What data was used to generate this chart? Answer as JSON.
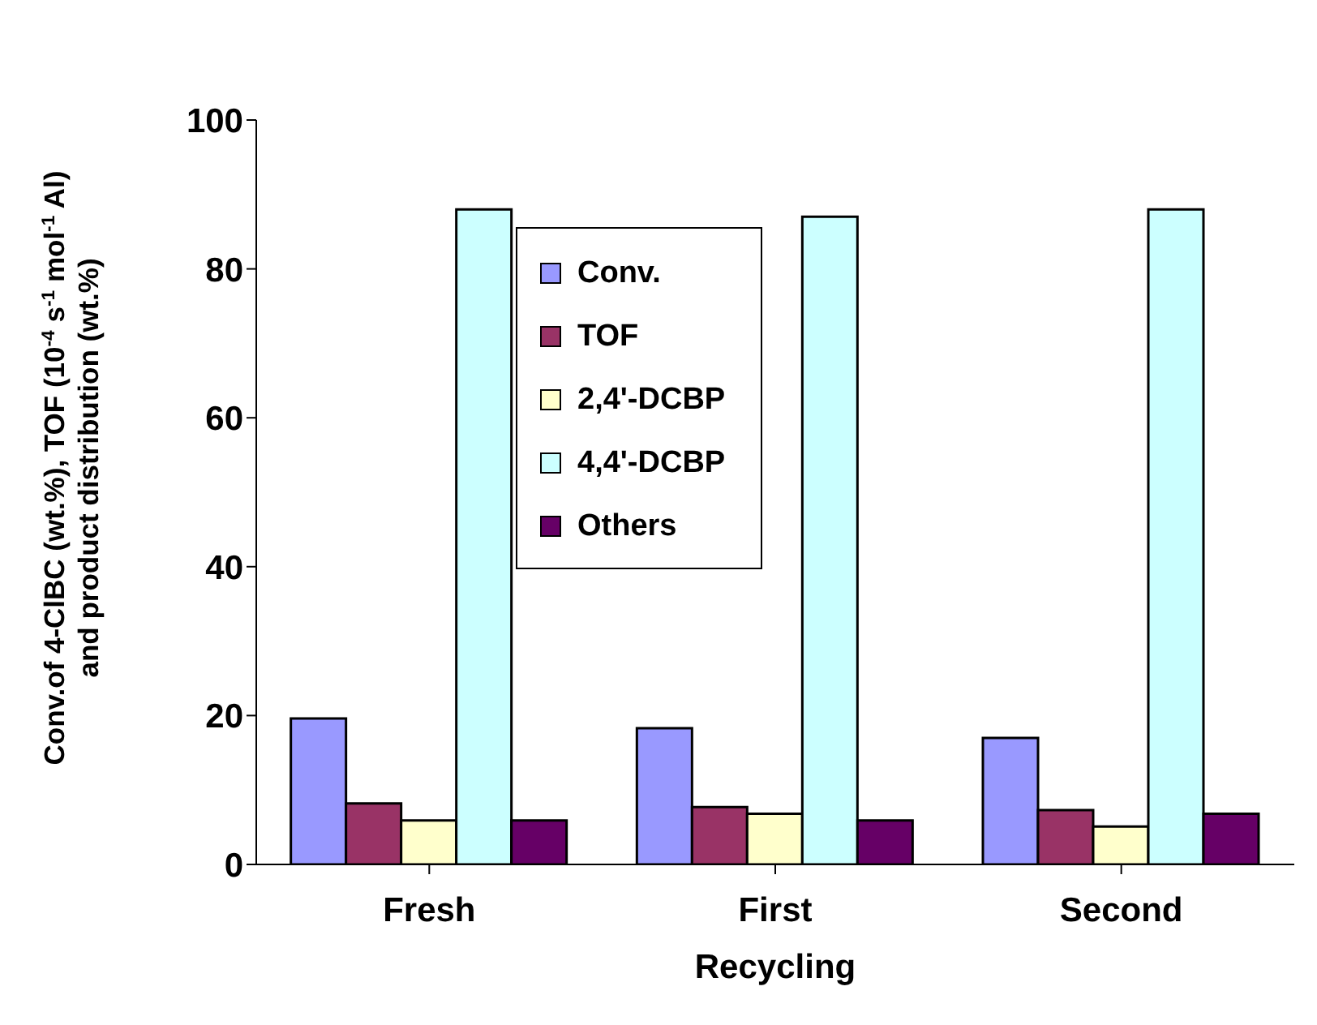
{
  "chart_data": {
    "type": "bar",
    "xlabel": "Recycling",
    "ylabel": "Conv.of 4-ClBC (wt.%), TOF (10$^{-4}$ s$^{-1}$ mol$^{-1}$ Al)\nand product distribution (wt.%)",
    "categories": [
      "Fresh",
      "First",
      "Second"
    ],
    "series": [
      {
        "name": "Conv.",
        "color": "#9999ff",
        "values": [
          19.6,
          18.3,
          17.0
        ]
      },
      {
        "name": "TOF",
        "color": "#993366",
        "values": [
          8.2,
          7.7,
          7.3
        ]
      },
      {
        "name": "2,4'-DCBP",
        "color": "#ffffcc",
        "values": [
          5.9,
          6.8,
          5.1
        ]
      },
      {
        "name": "4,4'-DCBP",
        "color": "#ccffff",
        "values": [
          88,
          87,
          88
        ]
      },
      {
        "name": "Others",
        "color": "#660066",
        "values": [
          5.9,
          5.9,
          6.8
        ]
      }
    ],
    "ylim": [
      0,
      100
    ],
    "yticks": [
      0,
      20,
      40,
      60,
      80,
      100
    ],
    "legend": "top"
  }
}
